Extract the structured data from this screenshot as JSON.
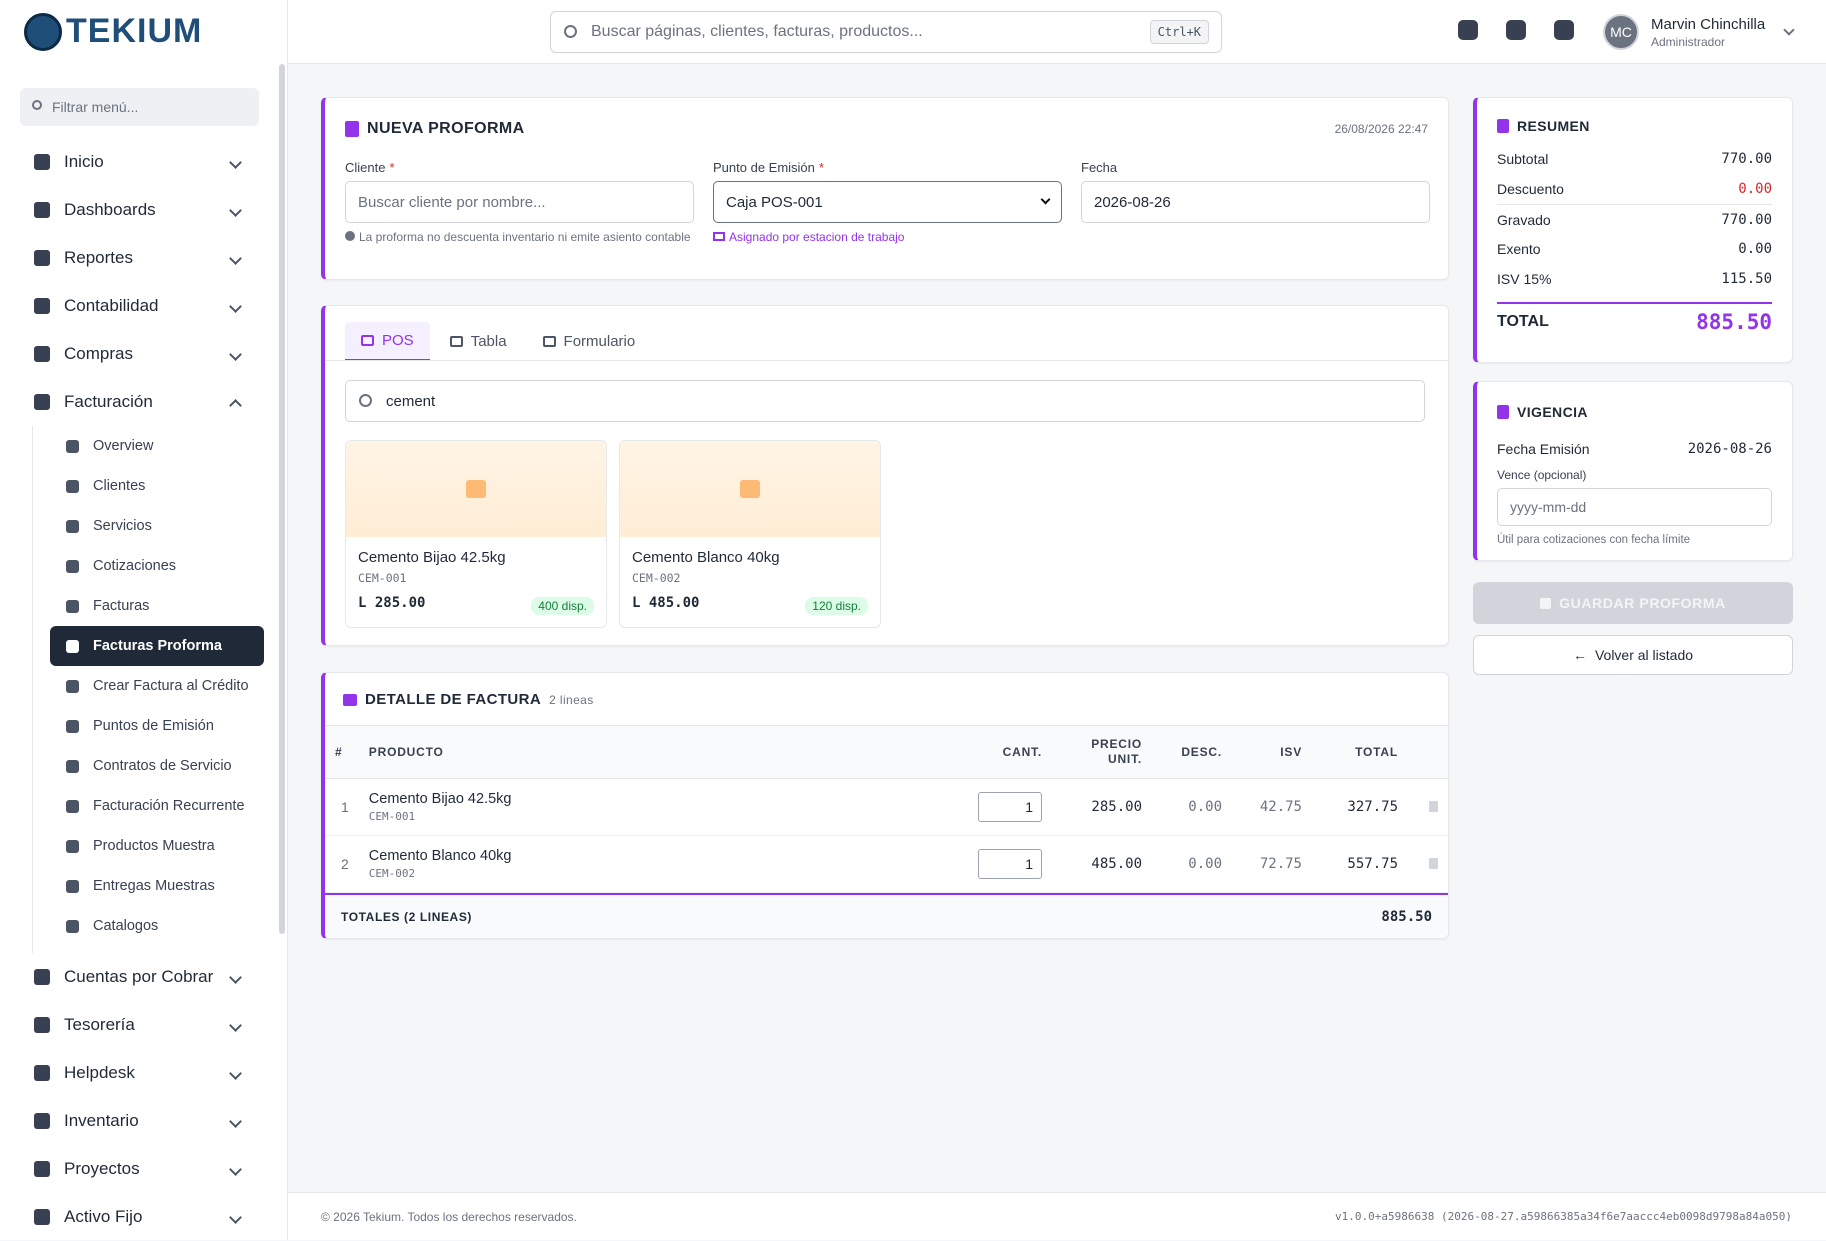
{
  "brand": "TEKIUM",
  "search": {
    "placeholder": "Buscar páginas, clientes, facturas, productos...",
    "shortcut": "Ctrl+K"
  },
  "user": {
    "initials": "MC",
    "name": "Marvin Chinchilla",
    "role": "Administrador"
  },
  "sidebar": {
    "filter": "Filtrar menú...",
    "items_top": [
      {
        "label": "Inicio"
      },
      {
        "label": "Dashboards"
      },
      {
        "label": "Reportes"
      },
      {
        "label": "Contabilidad"
      },
      {
        "label": "Compras"
      },
      {
        "label": "Facturación",
        "expanded": true
      }
    ],
    "submenu": [
      {
        "label": "Overview"
      },
      {
        "label": "Clientes"
      },
      {
        "label": "Servicios"
      },
      {
        "label": "Cotizaciones"
      },
      {
        "label": "Facturas"
      },
      {
        "label": "Facturas Proforma",
        "active": true
      },
      {
        "label": "Crear Factura al Crédito"
      },
      {
        "label": "Puntos de Emisión"
      },
      {
        "label": "Contratos de Servicio"
      },
      {
        "label": "Facturación Recurrente"
      },
      {
        "label": "Productos Muestra"
      },
      {
        "label": "Entregas Muestras"
      },
      {
        "label": "Catalogos"
      }
    ],
    "items_bottom": [
      {
        "label": "Cuentas por Cobrar"
      },
      {
        "label": "Tesorería"
      },
      {
        "label": "Helpdesk"
      },
      {
        "label": "Inventario"
      },
      {
        "label": "Proyectos"
      },
      {
        "label": "Activo Fijo"
      }
    ]
  },
  "form": {
    "title": "NUEVA PROFORMA",
    "datetime": "26/08/2026 22:47",
    "required_mark": "*",
    "cliente": {
      "label": "Cliente",
      "placeholder": "Buscar cliente por nombre...",
      "hint": "La proforma no descuenta inventario ni emite asiento contable"
    },
    "punto": {
      "label": "Punto de Emisión",
      "value": "Caja POS-001",
      "hint": "Asignado por estacion de trabajo"
    },
    "fecha": {
      "label": "Fecha",
      "value": "2026-08-26"
    }
  },
  "pos": {
    "tabs": [
      {
        "label": "POS",
        "active": true
      },
      {
        "label": "Tabla"
      },
      {
        "label": "Formulario"
      }
    ],
    "search": "cement",
    "products": [
      {
        "name": "Cemento Bijao 42.5kg",
        "code": "CEM-001",
        "price": "L 285.00",
        "stock": "400 disp."
      },
      {
        "name": "Cemento Blanco 40kg",
        "code": "CEM-002",
        "price": "L 485.00",
        "stock": "120 disp."
      }
    ]
  },
  "detail": {
    "title": "DETALLE DE FACTURA",
    "count": "2 lineas",
    "headers": [
      "#",
      "PRODUCTO",
      "CANT.",
      "PRECIO UNIT.",
      "DESC.",
      "ISV",
      "TOTAL"
    ],
    "rows": [
      {
        "n": 1,
        "product": "Cemento Bijao 42.5kg",
        "code": "CEM-001",
        "qty": 1,
        "price": "285.00",
        "disc": "0.00",
        "isv": "42.75",
        "total": "327.75"
      },
      {
        "n": 2,
        "product": "Cemento Blanco 40kg",
        "code": "CEM-002",
        "qty": 1,
        "price": "485.00",
        "disc": "0.00",
        "isv": "72.75",
        "total": "557.75"
      }
    ],
    "footer_label": "TOTALES (2 LINEAS)",
    "footer_total": "885.50"
  },
  "summary": {
    "title": "RESUMEN",
    "rows": [
      {
        "label": "Subtotal",
        "value": "770.00"
      },
      {
        "label": "Descuento",
        "value": "0.00",
        "color": "#dc2626"
      },
      {
        "label": "Gravado",
        "value": "770.00"
      },
      {
        "label": "Exento",
        "value": "0.00"
      },
      {
        "label": "ISV 15%",
        "value": "115.50"
      }
    ],
    "total_label": "TOTAL",
    "total": "885.50"
  },
  "validity": {
    "title": "VIGENCIA",
    "issue_label": "Fecha Emisión",
    "issue": "2026-08-26",
    "due_label": "Vence (opcional)",
    "due_placeholder": "yyyy-mm-dd",
    "hint": "Útil para cotizaciones con fecha límite"
  },
  "actions": {
    "save": "GUARDAR PROFORMA",
    "back": "Volver al listado"
  },
  "footer": {
    "copyright": "© 2026 Tekium. Todos los derechos reservados.",
    "version": "v1.0.0+a5986638 (2026-08-27.a59866385a34f6e7aaccc4eb0098d9798a84a050)"
  }
}
